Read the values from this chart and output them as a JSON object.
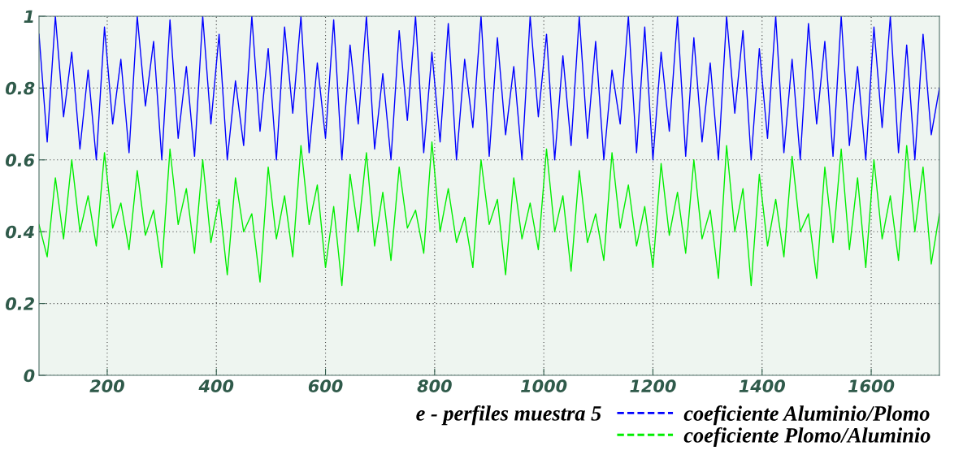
{
  "chart_data": {
    "type": "line",
    "xlabel": "e - perfiles muestra 5",
    "x": [
      75,
      90,
      105,
      120,
      135,
      150,
      165,
      180,
      195,
      210,
      225,
      240,
      255,
      270,
      285,
      300,
      315,
      330,
      345,
      360,
      375,
      390,
      405,
      420,
      435,
      450,
      465,
      480,
      495,
      510,
      525,
      540,
      555,
      570,
      585,
      600,
      615,
      630,
      645,
      660,
      675,
      690,
      705,
      720,
      735,
      750,
      765,
      780,
      795,
      810,
      825,
      840,
      855,
      870,
      885,
      900,
      915,
      930,
      945,
      960,
      975,
      990,
      1005,
      1020,
      1035,
      1050,
      1065,
      1080,
      1095,
      1110,
      1125,
      1140,
      1155,
      1170,
      1185,
      1200,
      1215,
      1230,
      1245,
      1260,
      1275,
      1290,
      1305,
      1320,
      1335,
      1350,
      1365,
      1380,
      1395,
      1410,
      1425,
      1440,
      1455,
      1470,
      1485,
      1500,
      1515,
      1530,
      1545,
      1560,
      1575,
      1590,
      1605,
      1620,
      1635,
      1650,
      1665,
      1680,
      1695,
      1710,
      1725
    ],
    "series": [
      {
        "name": "coeficiente Aluminio/Plomo",
        "color": "#0000ff",
        "values": [
          0.95,
          0.65,
          1.0,
          0.72,
          0.9,
          0.63,
          0.85,
          0.6,
          0.97,
          0.7,
          0.88,
          0.62,
          1.0,
          0.75,
          0.93,
          0.6,
          0.99,
          0.66,
          0.86,
          0.61,
          1.0,
          0.7,
          0.95,
          0.6,
          0.82,
          0.64,
          1.0,
          0.68,
          0.91,
          0.6,
          0.97,
          0.73,
          1.0,
          0.62,
          0.87,
          0.66,
          0.99,
          0.6,
          0.92,
          0.7,
          1.0,
          0.63,
          0.84,
          0.6,
          0.96,
          0.71,
          1.0,
          0.62,
          0.9,
          0.65,
          0.98,
          0.6,
          0.88,
          0.69,
          1.0,
          0.61,
          0.94,
          0.67,
          0.86,
          0.6,
          1.0,
          0.72,
          0.95,
          0.6,
          0.89,
          0.64,
          1.0,
          0.66,
          0.93,
          0.6,
          0.85,
          0.7,
          1.0,
          0.62,
          0.97,
          0.6,
          0.9,
          0.68,
          1.0,
          0.61,
          0.94,
          0.65,
          0.87,
          0.6,
          1.0,
          0.73,
          0.96,
          0.6,
          0.91,
          0.66,
          1.0,
          0.62,
          0.88,
          0.6,
          0.98,
          0.7,
          0.93,
          0.61,
          1.0,
          0.64,
          0.86,
          0.6,
          0.97,
          0.69,
          1.0,
          0.62,
          0.92,
          0.6,
          0.95,
          0.67,
          0.8
        ]
      },
      {
        "name": "coeficiente Plomo/Aluminio",
        "color": "#00ee00",
        "values": [
          0.42,
          0.33,
          0.55,
          0.38,
          0.6,
          0.4,
          0.5,
          0.36,
          0.62,
          0.41,
          0.48,
          0.35,
          0.57,
          0.39,
          0.46,
          0.3,
          0.63,
          0.42,
          0.52,
          0.34,
          0.6,
          0.37,
          0.49,
          0.28,
          0.55,
          0.4,
          0.45,
          0.26,
          0.58,
          0.38,
          0.5,
          0.33,
          0.64,
          0.42,
          0.53,
          0.3,
          0.47,
          0.25,
          0.56,
          0.4,
          0.62,
          0.36,
          0.51,
          0.32,
          0.58,
          0.41,
          0.46,
          0.34,
          0.65,
          0.4,
          0.52,
          0.37,
          0.44,
          0.3,
          0.6,
          0.42,
          0.49,
          0.28,
          0.55,
          0.38,
          0.48,
          0.35,
          0.63,
          0.4,
          0.5,
          0.29,
          0.57,
          0.37,
          0.45,
          0.32,
          0.62,
          0.41,
          0.53,
          0.36,
          0.47,
          0.3,
          0.59,
          0.39,
          0.51,
          0.34,
          0.6,
          0.38,
          0.46,
          0.27,
          0.64,
          0.4,
          0.52,
          0.25,
          0.56,
          0.36,
          0.49,
          0.33,
          0.61,
          0.4,
          0.45,
          0.27,
          0.58,
          0.37,
          0.63,
          0.35,
          0.55,
          0.3,
          0.6,
          0.38,
          0.5,
          0.32,
          0.64,
          0.4,
          0.58,
          0.31,
          0.45
        ]
      }
    ],
    "xlim": [
      75,
      1725
    ],
    "xticks": [
      200,
      400,
      600,
      800,
      1000,
      1200,
      1400,
      1600
    ],
    "ylim": [
      0,
      1
    ],
    "yticks": [
      0,
      0.2,
      0.4,
      0.6,
      0.8,
      1
    ],
    "grid": true,
    "legend": "bottom right"
  }
}
